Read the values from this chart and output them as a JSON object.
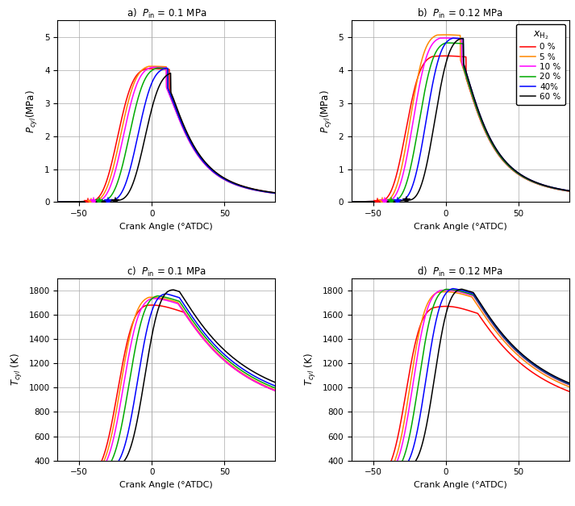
{
  "colors": [
    "#ff0000",
    "#ff8800",
    "#ff00ff",
    "#00aa00",
    "#0000ff",
    "#000000"
  ],
  "labels": [
    "0 %",
    "5 %",
    "10 %",
    "20 %",
    "40%",
    "60 %"
  ],
  "title_a": "a)  $P_\\mathrm{in}$ = 0.1 MPa",
  "title_b": "b)  $P_\\mathrm{in}$ = 0.12 MPa",
  "title_c": "c)  $P_\\mathrm{in}$ = 0.1 MPa",
  "title_d": "d)  $P_\\mathrm{in}$ = 0.12 MPa",
  "xlabel": "Crank Angle (°ATDC)",
  "ylabel_P": "$P_{cyl}$(MPa)",
  "ylabel_T": "$T_{cyl}$ (K)",
  "xlim": [
    -65,
    85
  ],
  "xticks": [
    -50,
    0,
    50
  ],
  "P_ylim": [
    0,
    5.5
  ],
  "P_yticks": [
    0,
    1,
    2,
    3,
    4,
    5
  ],
  "T_ylim": [
    400,
    1900
  ],
  "T_yticks": [
    400,
    600,
    800,
    1000,
    1200,
    1400,
    1600,
    1800
  ],
  "P01_ign_angles": [
    -44,
    -42,
    -40,
    -36,
    -30,
    -25
  ],
  "P012_ign_angles": [
    -47,
    -44,
    -42,
    -38,
    -33,
    -27
  ],
  "T01_ign_angles": [
    -44,
    -42,
    -40,
    -36,
    -30,
    -25
  ],
  "T012_ign_angles": [
    -47,
    -44,
    -42,
    -38,
    -33,
    -27
  ],
  "P01_peaks": [
    4.02,
    4.1,
    4.07,
    4.05,
    4.05,
    3.9
  ],
  "P01_peak_a": [
    12,
    10,
    10,
    11,
    11,
    13
  ],
  "P012_peaks": [
    4.4,
    5.05,
    4.95,
    4.8,
    4.95,
    4.95
  ],
  "P012_peak_a": [
    14,
    10,
    11,
    12,
    12,
    12
  ],
  "T01_peaks": [
    1630,
    1710,
    1700,
    1720,
    1750,
    1800
  ],
  "T01_peak_a": [
    22,
    18,
    18,
    19,
    19,
    19
  ],
  "T012_peaks": [
    1620,
    1755,
    1765,
    1772,
    1782,
    1792
  ],
  "T012_peak_a": [
    22,
    18,
    19,
    19,
    19,
    19
  ]
}
